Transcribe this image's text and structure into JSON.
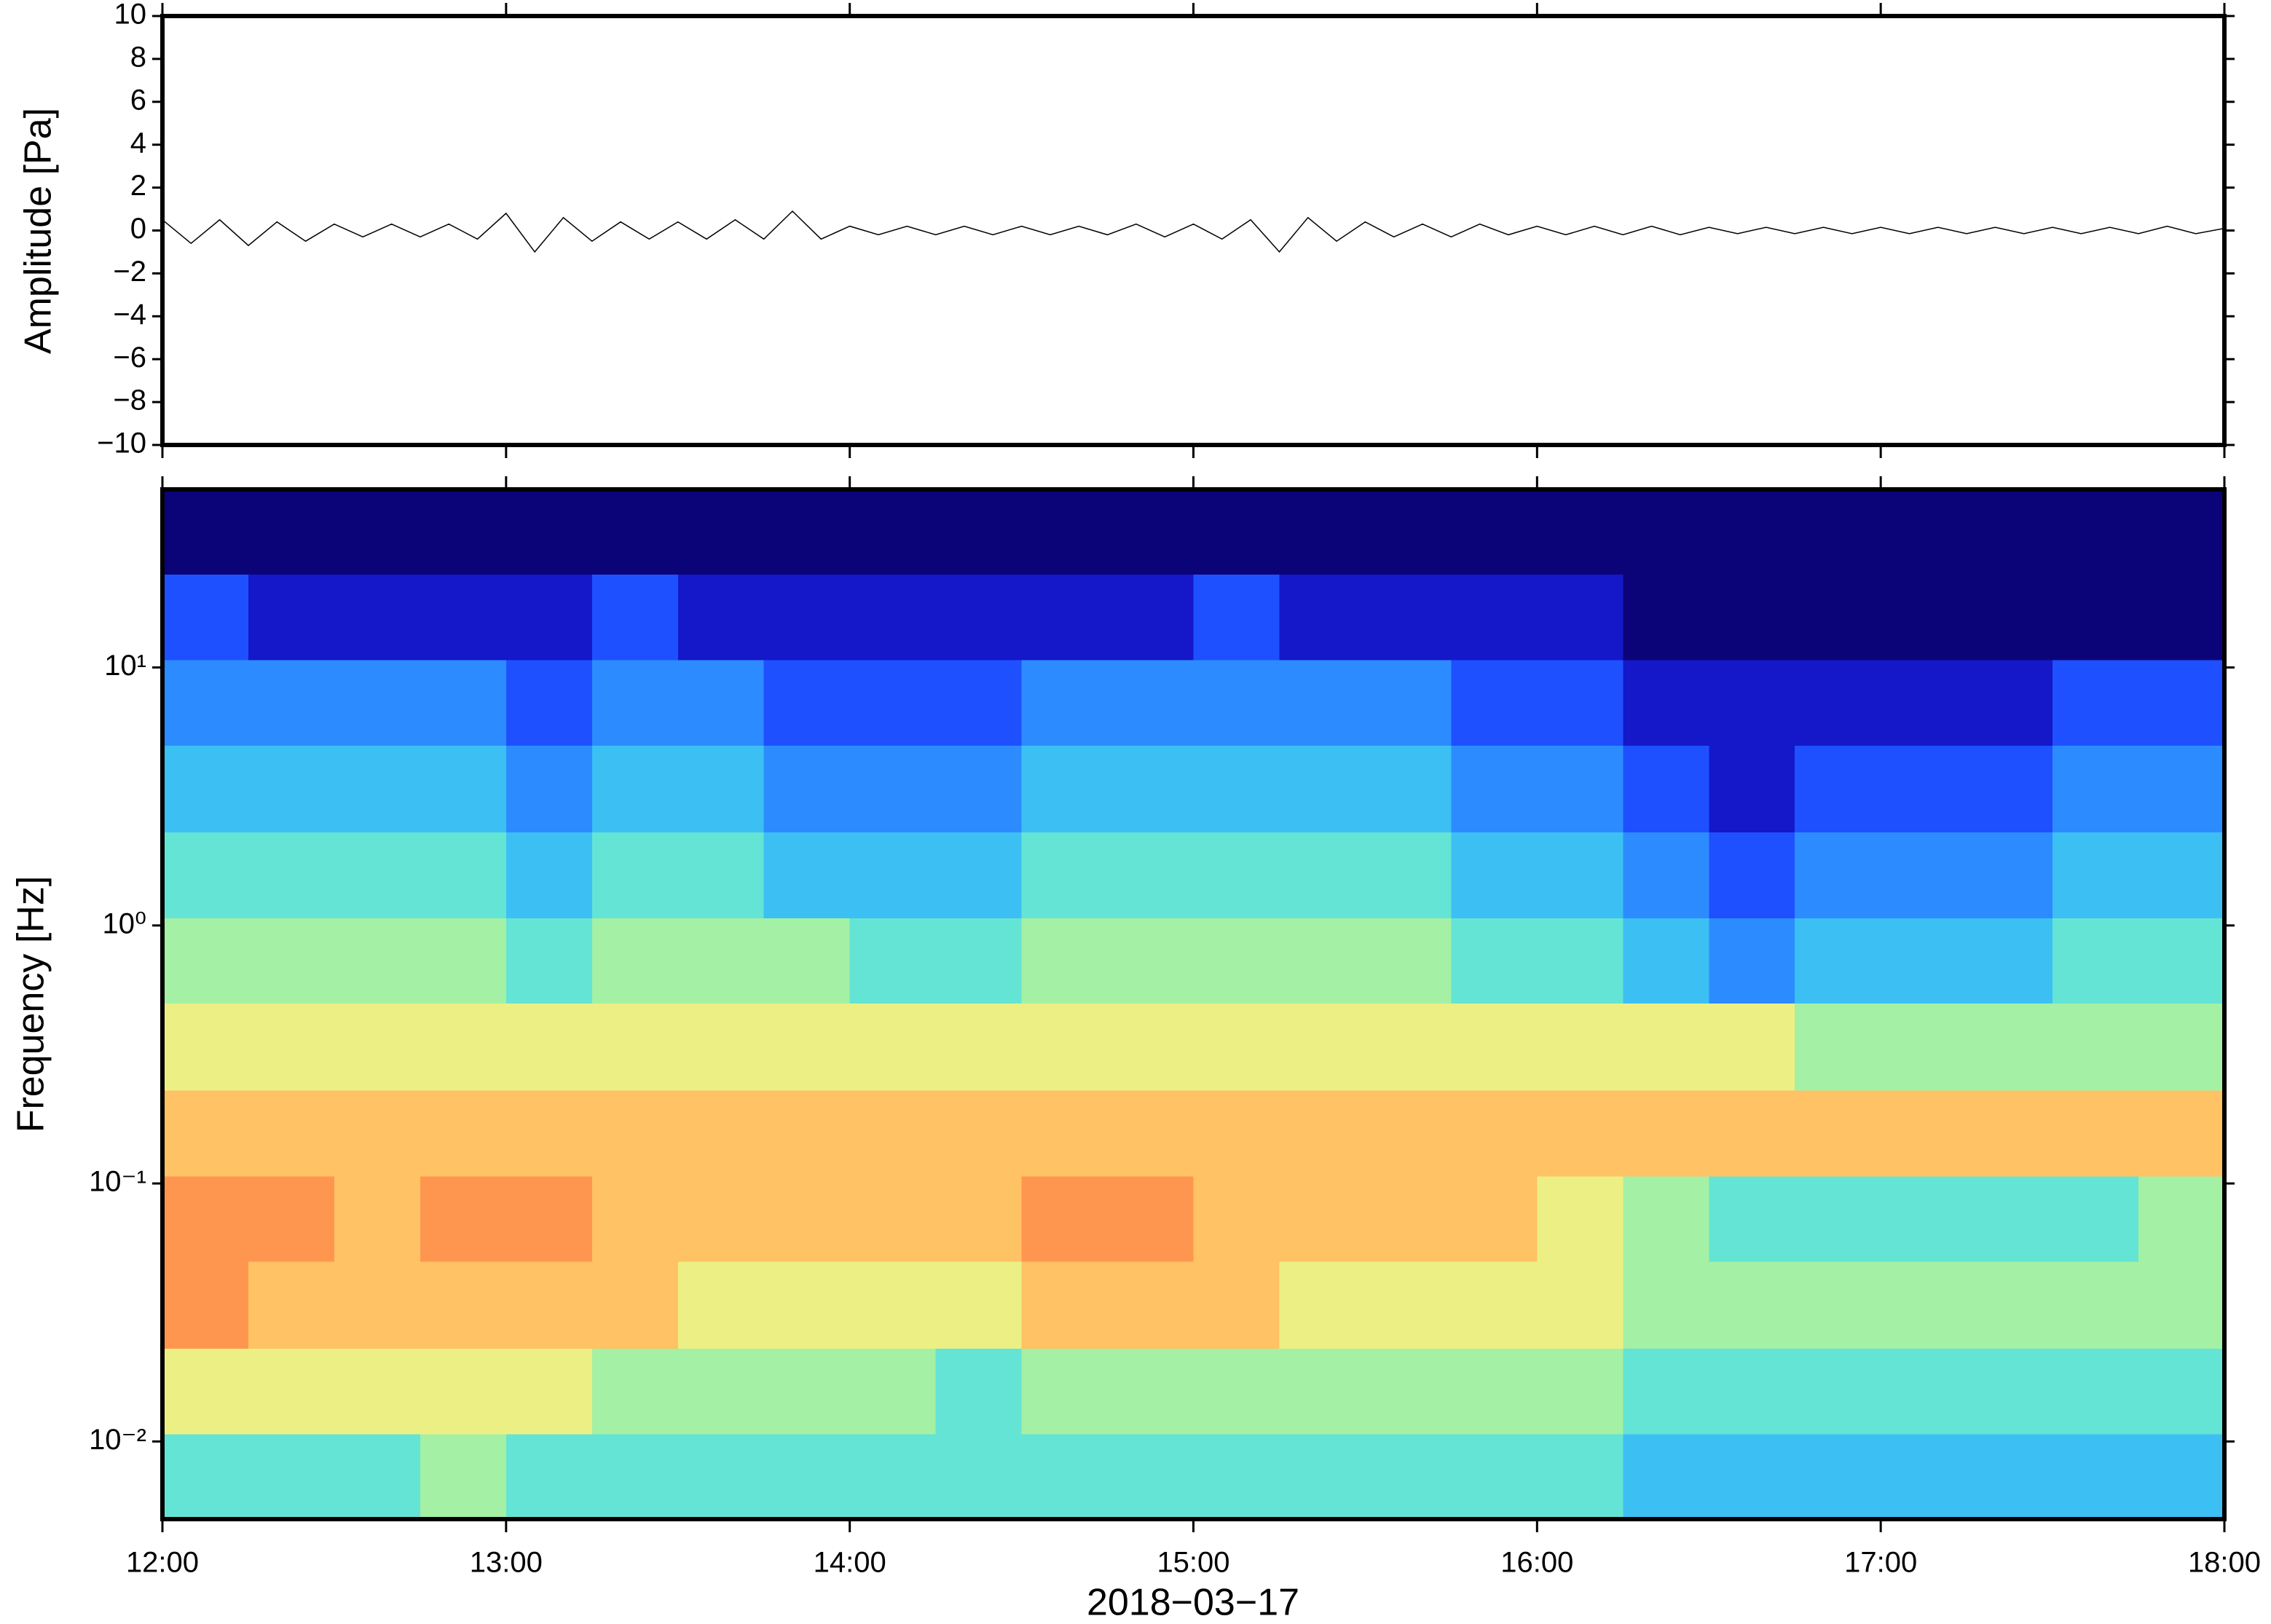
{
  "chart_data": [
    {
      "type": "line",
      "ylabel": "Amplitude [Pa]",
      "color": "#000000",
      "xlim": [
        0,
        360
      ],
      "xticks": [
        0,
        60,
        120,
        180,
        240,
        300,
        360
      ],
      "ylim": [
        -10,
        10
      ],
      "yticks": [
        {
          "value": -10,
          "label": "−10"
        },
        {
          "value": -8,
          "label": "−8"
        },
        {
          "value": -6,
          "label": "−6"
        },
        {
          "value": -4,
          "label": "−4"
        },
        {
          "value": -2,
          "label": "−2"
        },
        0,
        2,
        4,
        6,
        8,
        10
      ],
      "x": [
        0,
        5,
        10,
        15,
        20,
        25,
        30,
        35,
        40,
        45,
        50,
        55,
        60,
        65,
        70,
        75,
        80,
        85,
        90,
        95,
        100,
        105,
        110,
        115,
        120,
        125,
        130,
        135,
        140,
        145,
        150,
        155,
        160,
        165,
        170,
        175,
        180,
        185,
        190,
        195,
        200,
        205,
        210,
        215,
        220,
        225,
        230,
        235,
        240,
        245,
        250,
        255,
        260,
        265,
        270,
        275,
        280,
        285,
        290,
        295,
        300,
        305,
        310,
        315,
        320,
        325,
        330,
        335,
        340,
        345,
        350,
        355,
        360
      ],
      "values": [
        0.5,
        -0.6,
        0.5,
        -0.7,
        0.4,
        -0.5,
        0.3,
        -0.3,
        0.3,
        -0.3,
        0.3,
        -0.4,
        0.8,
        -1.0,
        0.6,
        -0.5,
        0.4,
        -0.4,
        0.4,
        -0.4,
        0.5,
        -0.4,
        0.9,
        -0.4,
        0.2,
        -0.2,
        0.2,
        -0.2,
        0.2,
        -0.2,
        0.2,
        -0.2,
        0.2,
        -0.2,
        0.3,
        -0.3,
        0.3,
        -0.4,
        0.5,
        -1.0,
        0.6,
        -0.5,
        0.4,
        -0.3,
        0.3,
        -0.3,
        0.3,
        -0.2,
        0.2,
        -0.2,
        0.2,
        -0.2,
        0.2,
        -0.2,
        0.15,
        -0.15,
        0.15,
        -0.15,
        0.15,
        -0.15,
        0.15,
        -0.15,
        0.15,
        -0.15,
        0.15,
        -0.15,
        0.15,
        -0.15,
        0.15,
        -0.15,
        0.2,
        -0.15,
        0.1
      ]
    },
    {
      "type": "heatmap",
      "ylabel": "Frequency [Hz]",
      "xlabel": "2018−03−17",
      "log_y": true,
      "xlim": [
        0,
        360
      ],
      "xticks": [
        {
          "value": 0,
          "label": "12:00"
        },
        {
          "value": 60,
          "label": "13:00"
        },
        {
          "value": 120,
          "label": "14:00"
        },
        {
          "value": 180,
          "label": "15:00"
        },
        {
          "value": 240,
          "label": "16:00"
        },
        {
          "value": 300,
          "label": "17:00"
        },
        {
          "value": 360,
          "label": "18:00"
        }
      ],
      "ylim": [
        0.005,
        49
      ],
      "yticks": [
        {
          "value": 0.01,
          "label": "10⁻²"
        },
        {
          "value": 0.1,
          "label": "10⁻¹"
        },
        {
          "value": 1,
          "label": "10⁰"
        },
        {
          "value": 10,
          "label": "10¹"
        }
      ],
      "colormap": [
        "#0b0478",
        "#1418c8",
        "#1e50ff",
        "#2c8cff",
        "#3cc0f4",
        "#64e4d4",
        "#a4f0a4",
        "#ecf084",
        "#ffc264",
        "#ff9650",
        "#f05050"
      ],
      "x_edges": [
        0,
        15,
        30,
        45,
        60,
        75,
        90,
        105,
        120,
        135,
        150,
        165,
        180,
        195,
        210,
        225,
        240,
        255,
        270,
        285,
        300,
        315,
        330,
        345,
        360
      ],
      "y_edges": [
        0.005,
        0.0107,
        0.023,
        0.05,
        0.107,
        0.23,
        0.5,
        1.07,
        2.3,
        5,
        10.7,
        23,
        49
      ],
      "z": [
        [
          5,
          5,
          5,
          6,
          5,
          5,
          5,
          5,
          5,
          5,
          5,
          5,
          5,
          5,
          5,
          5,
          5,
          4,
          4,
          4,
          4,
          4,
          4,
          4
        ],
        [
          7,
          7,
          7,
          7,
          7,
          6,
          6,
          6,
          6,
          5,
          6,
          6,
          6,
          6,
          6,
          6,
          6,
          5,
          5,
          5,
          5,
          5,
          5,
          5
        ],
        [
          9,
          8,
          8,
          8,
          8,
          8,
          7,
          7,
          7,
          7,
          8,
          8,
          8,
          7,
          7,
          7,
          7,
          6,
          6,
          6,
          6,
          6,
          6,
          6
        ],
        [
          9,
          9,
          8,
          9,
          9,
          8,
          8,
          8,
          8,
          8,
          9,
          9,
          8,
          8,
          8,
          8,
          7,
          6,
          5,
          5,
          5,
          5,
          5,
          6
        ],
        [
          8,
          8,
          8,
          8,
          8,
          8,
          8,
          8,
          8,
          8,
          8,
          8,
          8,
          8,
          8,
          8,
          8,
          8,
          8,
          8,
          8,
          8,
          8,
          8
        ],
        [
          7,
          7,
          7,
          7,
          7,
          7,
          7,
          7,
          7,
          7,
          7,
          7,
          7,
          7,
          7,
          7,
          7,
          7,
          7,
          6,
          6,
          6,
          6,
          6
        ],
        [
          6,
          6,
          6,
          6,
          5,
          6,
          6,
          6,
          5,
          5,
          6,
          6,
          6,
          6,
          6,
          5,
          5,
          4,
          3,
          4,
          4,
          4,
          5,
          5
        ],
        [
          5,
          5,
          5,
          5,
          4,
          5,
          5,
          4,
          4,
          4,
          5,
          5,
          5,
          5,
          5,
          4,
          4,
          3,
          2,
          3,
          3,
          3,
          4,
          4
        ],
        [
          4,
          4,
          4,
          4,
          3,
          4,
          4,
          3,
          3,
          3,
          4,
          4,
          4,
          4,
          4,
          3,
          3,
          2,
          1,
          2,
          2,
          2,
          3,
          3
        ],
        [
          3,
          3,
          3,
          3,
          2,
          3,
          3,
          2,
          2,
          2,
          3,
          3,
          3,
          3,
          3,
          2,
          2,
          1,
          1,
          1,
          1,
          1,
          2,
          2
        ],
        [
          2,
          1,
          1,
          1,
          1,
          2,
          1,
          1,
          1,
          1,
          1,
          1,
          2,
          1,
          1,
          1,
          1,
          0,
          0,
          0,
          0,
          0,
          0,
          0
        ],
        [
          0,
          0,
          0,
          0,
          0,
          0,
          0,
          0,
          0,
          0,
          0,
          0,
          0,
          0,
          0,
          0,
          0,
          0,
          0,
          0,
          0,
          0,
          0,
          0
        ]
      ]
    }
  ]
}
